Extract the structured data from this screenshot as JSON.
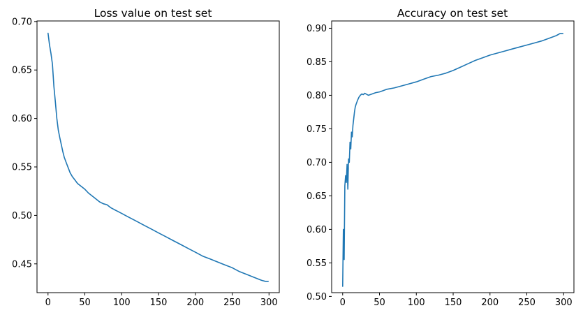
{
  "chart_data": [
    {
      "type": "line",
      "title": "Loss value on test set",
      "xlabel": "",
      "ylabel": "",
      "xlim": [
        -14.95,
        313.95
      ],
      "ylim": [
        0.4203,
        0.7006
      ],
      "xticks": [
        0,
        50,
        100,
        150,
        200,
        250,
        300
      ],
      "yticks": [
        0.45,
        0.5,
        0.55,
        0.6,
        0.65,
        0.7
      ],
      "xtick_labels": [
        "0",
        "50",
        "100",
        "150",
        "200",
        "250",
        "300"
      ],
      "ytick_labels": [
        "0.45",
        "0.50",
        "0.55",
        "0.60",
        "0.65",
        "0.70"
      ],
      "grid": false,
      "legend": null,
      "series": [
        {
          "color": "#1f77b4",
          "x": [
            0,
            2,
            4,
            6,
            8,
            10,
            12,
            14,
            16,
            18,
            20,
            22,
            25,
            28,
            30,
            33,
            36,
            40,
            45,
            50,
            55,
            60,
            65,
            70,
            75,
            80,
            85,
            90,
            95,
            100,
            105,
            110,
            120,
            130,
            140,
            150,
            160,
            170,
            180,
            190,
            200,
            210,
            220,
            230,
            240,
            250,
            260,
            270,
            280,
            290,
            295,
            299
          ],
          "y": [
            0.688,
            0.676,
            0.667,
            0.656,
            0.633,
            0.617,
            0.6,
            0.588,
            0.58,
            0.573,
            0.566,
            0.56,
            0.554,
            0.548,
            0.544,
            0.54,
            0.537,
            0.533,
            0.53,
            0.527,
            0.523,
            0.52,
            0.517,
            0.514,
            0.512,
            0.511,
            0.508,
            0.506,
            0.504,
            0.502,
            0.5,
            0.498,
            0.494,
            0.49,
            0.486,
            0.482,
            0.478,
            0.474,
            0.47,
            0.466,
            0.462,
            0.458,
            0.455,
            0.452,
            0.449,
            0.446,
            0.442,
            0.439,
            0.436,
            0.433,
            0.432,
            0.432
          ]
        }
      ]
    },
    {
      "type": "line",
      "title": "Accuracy on test set",
      "xlabel": "",
      "ylabel": "",
      "xlim": [
        -14.95,
        313.95
      ],
      "ylim": [
        0.5056,
        0.9109
      ],
      "xticks": [
        0,
        50,
        100,
        150,
        200,
        250,
        300
      ],
      "yticks": [
        0.5,
        0.55,
        0.6,
        0.65,
        0.7,
        0.75,
        0.8,
        0.85,
        0.9
      ],
      "xtick_labels": [
        "0",
        "50",
        "100",
        "150",
        "200",
        "250",
        "300"
      ],
      "ytick_labels": [
        "0.50",
        "0.55",
        "0.60",
        "0.65",
        "0.70",
        "0.75",
        "0.80",
        "0.85",
        "0.90"
      ],
      "grid": false,
      "legend": null,
      "series": [
        {
          "color": "#1f77b4",
          "x": [
            0,
            1,
            2,
            3,
            4,
            5,
            6,
            7,
            8,
            9,
            10,
            11,
            12,
            13,
            14,
            15,
            16,
            17,
            18,
            20,
            22,
            24,
            26,
            28,
            30,
            35,
            40,
            45,
            50,
            55,
            60,
            70,
            80,
            90,
            100,
            110,
            120,
            130,
            140,
            150,
            160,
            170,
            180,
            190,
            200,
            210,
            220,
            230,
            240,
            250,
            260,
            270,
            280,
            290,
            295,
            299
          ],
          "y": [
            0.515,
            0.6,
            0.555,
            0.665,
            0.68,
            0.67,
            0.697,
            0.66,
            0.705,
            0.7,
            0.73,
            0.72,
            0.745,
            0.738,
            0.755,
            0.765,
            0.775,
            0.782,
            0.786,
            0.792,
            0.797,
            0.8,
            0.802,
            0.801,
            0.803,
            0.8,
            0.802,
            0.804,
            0.805,
            0.807,
            0.809,
            0.811,
            0.814,
            0.817,
            0.82,
            0.824,
            0.828,
            0.83,
            0.833,
            0.837,
            0.842,
            0.847,
            0.852,
            0.856,
            0.86,
            0.863,
            0.866,
            0.869,
            0.872,
            0.875,
            0.878,
            0.881,
            0.885,
            0.889,
            0.892,
            0.892
          ]
        }
      ]
    }
  ]
}
